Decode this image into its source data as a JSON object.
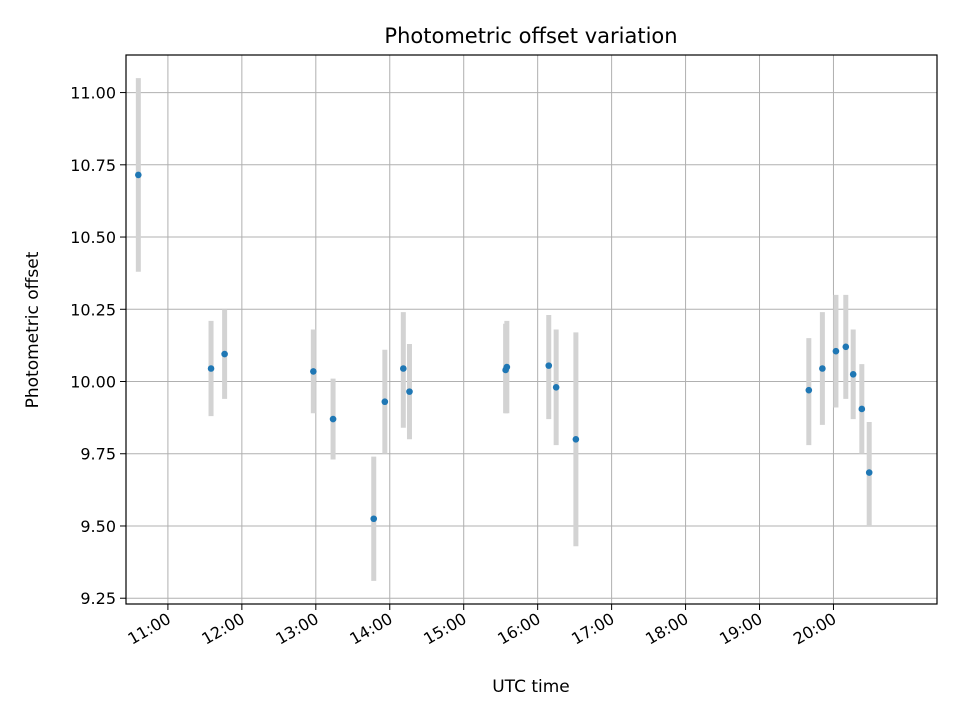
{
  "chart_data": {
    "type": "scatter",
    "title": "Photometric offset variation",
    "xlabel": "UTC time",
    "ylabel": "Photometric offset",
    "x_ticks": [
      "11:00",
      "12:00",
      "13:00",
      "14:00",
      "15:00",
      "16:00",
      "17:00",
      "18:00",
      "19:00",
      "20:00"
    ],
    "y_ticks": [
      "9.25",
      "9.50",
      "9.75",
      "10.00",
      "10.25",
      "10.50",
      "10.75",
      "11.00"
    ],
    "xlim": [
      "10:26",
      "21:24"
    ],
    "ylim": [
      9.23,
      11.13
    ],
    "grid": true,
    "point_color": "#1f77b4",
    "errorbar_color": "#d3d3d3",
    "series": [
      {
        "points": [
          {
            "x": "10:36",
            "y": 10.715,
            "low": 10.38,
            "high": 11.05
          },
          {
            "x": "11:35",
            "y": 10.045,
            "low": 9.88,
            "high": 10.21
          },
          {
            "x": "11:46",
            "y": 10.095,
            "low": 9.94,
            "high": 10.25
          },
          {
            "x": "12:58",
            "y": 10.035,
            "low": 9.89,
            "high": 10.18
          },
          {
            "x": "13:14",
            "y": 9.87,
            "low": 9.73,
            "high": 10.01
          },
          {
            "x": "13:47",
            "y": 9.525,
            "low": 9.31,
            "high": 9.74
          },
          {
            "x": "13:56",
            "y": 9.93,
            "low": 9.75,
            "high": 10.11
          },
          {
            "x": "14:11",
            "y": 10.045,
            "low": 9.84,
            "high": 10.24
          },
          {
            "x": "14:16",
            "y": 9.965,
            "low": 9.8,
            "high": 10.13
          },
          {
            "x": "15:34",
            "y": 10.04,
            "low": 9.89,
            "high": 10.2
          },
          {
            "x": "15:35",
            "y": 10.05,
            "low": 9.89,
            "high": 10.21
          },
          {
            "x": "16:09",
            "y": 10.055,
            "low": 9.87,
            "high": 10.23
          },
          {
            "x": "16:15",
            "y": 9.98,
            "low": 9.78,
            "high": 10.18
          },
          {
            "x": "16:31",
            "y": 9.8,
            "low": 9.43,
            "high": 10.17
          },
          {
            "x": "19:40",
            "y": 9.97,
            "low": 9.78,
            "high": 10.15
          },
          {
            "x": "19:51",
            "y": 10.045,
            "low": 9.85,
            "high": 10.24
          },
          {
            "x": "20:02",
            "y": 10.105,
            "low": 9.91,
            "high": 10.3
          },
          {
            "x": "20:10",
            "y": 10.12,
            "low": 9.94,
            "high": 10.3
          },
          {
            "x": "20:16",
            "y": 10.025,
            "low": 9.87,
            "high": 10.18
          },
          {
            "x": "20:23",
            "y": 9.905,
            "low": 9.75,
            "high": 10.06
          },
          {
            "x": "20:29",
            "y": 9.685,
            "low": 9.5,
            "high": 9.86
          }
        ]
      }
    ]
  }
}
